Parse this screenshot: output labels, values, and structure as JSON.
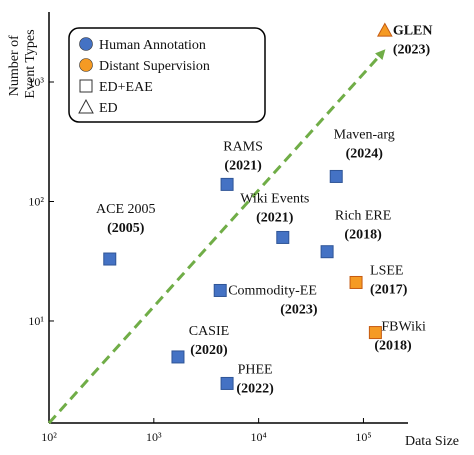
{
  "chart_data": {
    "type": "scatter",
    "xlabel": "Data Size",
    "ylabel": "Number of Event Types",
    "x_scale": "log",
    "y_scale": "log",
    "xlim": [
      100,
      200000
    ],
    "ylim": [
      1.4,
      3000
    ],
    "x_ticks": [
      {
        "value": 100,
        "label": "10²"
      },
      {
        "value": 1000,
        "label": "10³"
      },
      {
        "value": 10000,
        "label": "10⁴"
      },
      {
        "value": 100000,
        "label": "10⁵"
      }
    ],
    "y_ticks": [
      {
        "value": 10,
        "label": "10¹"
      },
      {
        "value": 100,
        "label": "10²"
      },
      {
        "value": 1000,
        "label": "10³"
      }
    ],
    "legend": {
      "placement": "top-left",
      "items": [
        {
          "label": "Human Annotation",
          "marker": "circle",
          "color": "#4472C4"
        },
        {
          "label": "Distant Supervision",
          "marker": "circle",
          "color": "#F59A23"
        },
        {
          "label": "ED+EAE",
          "marker": "square",
          "color": "#ffffff"
        },
        {
          "label": "ED",
          "marker": "triangle",
          "color": "#ffffff"
        }
      ]
    },
    "points": [
      {
        "name": "ACE 2005",
        "year": "(2005)",
        "x": 380,
        "y": 33,
        "marker": "square",
        "source": "human"
      },
      {
        "name": "RAMS",
        "year": "(2021)",
        "x": 5000,
        "y": 139,
        "marker": "square",
        "source": "human"
      },
      {
        "name": "Maven-arg",
        "year": "(2024)",
        "x": 55000,
        "y": 162,
        "marker": "square",
        "source": "human"
      },
      {
        "name": "Wiki Events",
        "year": "(2021)",
        "x": 17000,
        "y": 50,
        "marker": "square",
        "source": "human"
      },
      {
        "name": "Rich ERE",
        "year": "(2018)",
        "x": 45000,
        "y": 38,
        "marker": "square",
        "source": "human"
      },
      {
        "name": "Commodity-EE",
        "year": "(2023)",
        "x": 4300,
        "y": 18,
        "marker": "square",
        "source": "human"
      },
      {
        "name": "LSEE",
        "year": "(2017)",
        "x": 85000,
        "y": 21,
        "marker": "square",
        "source": "distant"
      },
      {
        "name": "FBWiki",
        "year": "(2018)",
        "x": 130000,
        "y": 8,
        "marker": "square",
        "source": "distant"
      },
      {
        "name": "CASIE",
        "year": "(2020)",
        "x": 1700,
        "y": 5,
        "marker": "square",
        "source": "human"
      },
      {
        "name": "PHEE",
        "year": "(2022)",
        "x": 5000,
        "y": 3,
        "marker": "square",
        "source": "human"
      },
      {
        "name": "GLEN",
        "year": "(2023)",
        "x": 160000,
        "y": 2700,
        "marker": "triangle",
        "source": "distant"
      }
    ],
    "trend_line": {
      "from": [
        100,
        1.4
      ],
      "to": [
        155000,
        1800
      ],
      "color": "#70AD47",
      "style": "dashed"
    }
  },
  "colors": {
    "human": "#4472C4",
    "distant": "#F59A23",
    "marker_edge": "#2F5597",
    "distant_edge": "#C55A11",
    "trend": "#70AD47"
  }
}
